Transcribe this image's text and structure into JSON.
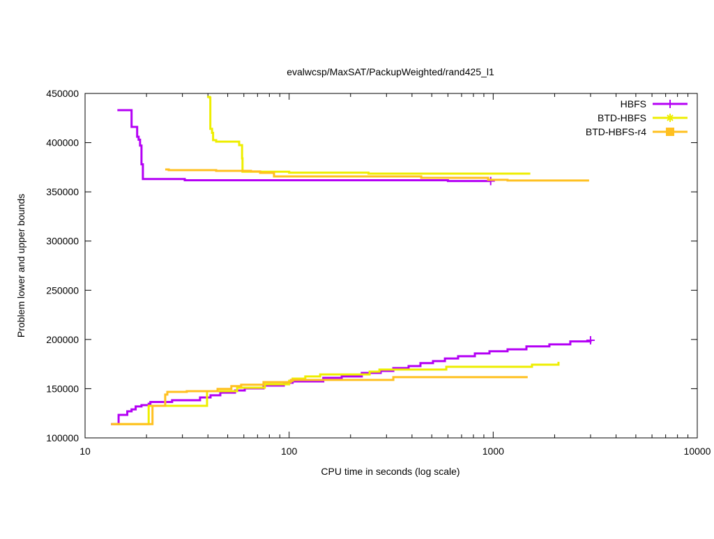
{
  "chart_data": {
    "type": "line",
    "title": "evalwcsp/MaxSAT/PackupWeighted/rand425_l1",
    "xlabel": "CPU time in seconds (log scale)",
    "ylabel": "Problem lower and upper bounds",
    "xscale": "log",
    "xlim": [
      10,
      10000
    ],
    "ylim": [
      100000,
      450000
    ],
    "xticks": [
      10,
      100,
      1000,
      10000
    ],
    "xtick_labels": [
      "10",
      "100",
      "1000",
      "10000"
    ],
    "yticks": [
      100000,
      150000,
      200000,
      250000,
      300000,
      350000,
      400000,
      450000
    ],
    "ytick_labels": [
      "100000",
      "150000",
      "200000",
      "250000",
      "300000",
      "350000",
      "400000",
      "450000"
    ],
    "grid": false,
    "legend_position": "top-right",
    "series": [
      {
        "name": "HBFS",
        "color": "#b400f5",
        "marker": "plus",
        "upper": [
          [
            14.4,
            433000
          ],
          [
            16.9,
            416000
          ],
          [
            18.0,
            406000
          ],
          [
            18.3,
            403000
          ],
          [
            18.6,
            397000
          ],
          [
            18.9,
            378000
          ],
          [
            19.2,
            363000
          ],
          [
            30.8,
            361800
          ],
          [
            600,
            361000
          ],
          [
            972,
            361000
          ]
        ],
        "lower": [
          [
            13.4,
            114000
          ],
          [
            14.6,
            123400
          ],
          [
            16.1,
            127000
          ],
          [
            16.9,
            129000
          ],
          [
            17.7,
            132000
          ],
          [
            18.9,
            133300
          ],
          [
            20.5,
            134700
          ],
          [
            20.9,
            136500
          ],
          [
            26.7,
            138300
          ],
          [
            36.6,
            141100
          ],
          [
            41.2,
            143300
          ],
          [
            46.0,
            146000
          ],
          [
            54.3,
            148200
          ],
          [
            60.6,
            150300
          ],
          [
            74.9,
            153100
          ],
          [
            94.2,
            156000
          ],
          [
            104,
            157400
          ],
          [
            147,
            161000
          ],
          [
            181,
            162400
          ],
          [
            227,
            166000
          ],
          [
            281,
            168000
          ],
          [
            324,
            170900
          ],
          [
            385,
            173000
          ],
          [
            440,
            176000
          ],
          [
            507,
            178000
          ],
          [
            580,
            180700
          ],
          [
            673,
            183000
          ],
          [
            813,
            185800
          ],
          [
            959,
            188000
          ],
          [
            1176,
            190000
          ],
          [
            1455,
            193000
          ],
          [
            1885,
            195000
          ],
          [
            2387,
            198000
          ],
          [
            2999,
            199200
          ]
        ]
      },
      {
        "name": "BTD-HBFS",
        "color": "#eeee00",
        "marker": "star",
        "upper": [
          [
            39.6,
            446500
          ],
          [
            40.8,
            445800
          ],
          [
            41.1,
            414000
          ],
          [
            41.9,
            410000
          ],
          [
            42.4,
            402500
          ],
          [
            43.9,
            401000
          ],
          [
            56.9,
            397500
          ],
          [
            58.8,
            384000
          ],
          [
            59.1,
            370500
          ],
          [
            100,
            369500
          ],
          [
            245,
            368500
          ],
          [
            1520,
            368500
          ]
        ],
        "lower": [
          [
            13.7,
            114000
          ],
          [
            20.5,
            132600
          ],
          [
            39.6,
            147500
          ],
          [
            55.6,
            151000
          ],
          [
            76,
            154500
          ],
          [
            100,
            158000
          ],
          [
            104,
            160200
          ],
          [
            120,
            162400
          ],
          [
            142,
            164500
          ],
          [
            248,
            167300
          ],
          [
            277,
            169400
          ],
          [
            589,
            172300
          ],
          [
            1549,
            174400
          ],
          [
            2089,
            177300
          ]
        ]
      },
      {
        "name": "BTD-HBFS-r4",
        "color": "#ffc020",
        "marker": "square",
        "upper": [
          [
            24.7,
            372800
          ],
          [
            25.7,
            372100
          ],
          [
            43.9,
            371400
          ],
          [
            65,
            370700
          ],
          [
            72.1,
            369300
          ],
          [
            84.3,
            365700
          ],
          [
            444,
            364300
          ],
          [
            944,
            362200
          ],
          [
            1176,
            361500
          ],
          [
            2951,
            361500
          ]
        ],
        "lower": [
          [
            13.4,
            114000
          ],
          [
            21.4,
            132600
          ],
          [
            24.7,
            144000
          ],
          [
            25.3,
            146800
          ],
          [
            31.5,
            147500
          ],
          [
            44.6,
            149800
          ],
          [
            52.1,
            152600
          ],
          [
            58.2,
            154000
          ],
          [
            74.9,
            156700
          ],
          [
            102,
            158900
          ],
          [
            324,
            161700
          ],
          [
            1476,
            161700
          ]
        ]
      }
    ]
  }
}
